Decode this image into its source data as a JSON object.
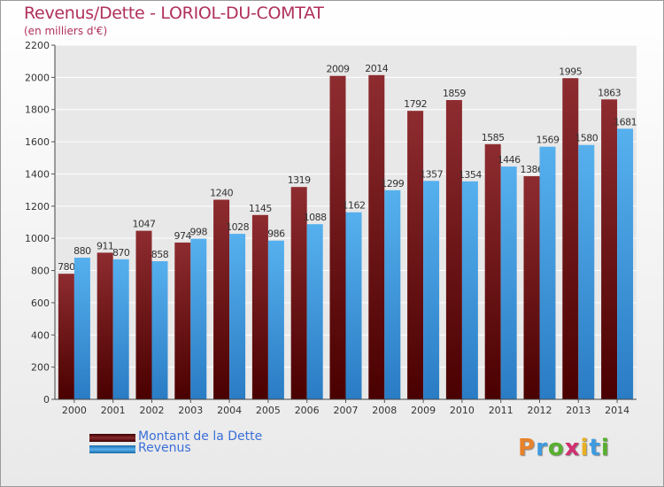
{
  "chart_data": {
    "type": "bar",
    "title": "Revenus/Dette - LORIOL-DU-COMTAT",
    "subtitle": "(en milliers d'€)",
    "categories": [
      "2000",
      "2001",
      "2002",
      "2003",
      "2004",
      "2005",
      "2006",
      "2007",
      "2008",
      "2009",
      "2010",
      "2011",
      "2012",
      "2013",
      "2014"
    ],
    "series": [
      {
        "name": "Montant de la Dette",
        "color": "#7a1418",
        "values": [
          780,
          911,
          1047,
          974,
          1240,
          1145,
          1319,
          2009,
          2014,
          1792,
          1859,
          1585,
          1386,
          1995,
          1863
        ]
      },
      {
        "name": "Revenus",
        "color": "#3f9be0",
        "values": [
          880,
          870,
          858,
          998,
          1028,
          986,
          1088,
          1162,
          1299,
          1357,
          1354,
          1446,
          1569,
          1580,
          1681
        ]
      }
    ],
    "ylim": [
      0,
      2200
    ],
    "yticks": [
      0,
      200,
      400,
      600,
      800,
      1000,
      1200,
      1400,
      1600,
      1800,
      2000,
      2200
    ],
    "xlabel": "",
    "ylabel": "",
    "grid": true,
    "legend": "bottom-left"
  },
  "legend": {
    "items": [
      {
        "label": "Montant de la Dette",
        "color": "#7a1418"
      },
      {
        "label": "Revenus",
        "color": "#3f9be0"
      }
    ]
  },
  "logo": {
    "text": "Proxiti",
    "letters": [
      {
        "ch": "P",
        "color": "#e8822a"
      },
      {
        "ch": "r",
        "color": "#3f9be0"
      },
      {
        "ch": "o",
        "color": "#58b030"
      },
      {
        "ch": "x",
        "color": "#d03070"
      },
      {
        "ch": "i",
        "color": "#e8b020"
      },
      {
        "ch": "t",
        "color": "#3f9be0"
      },
      {
        "ch": "i",
        "color": "#58b030"
      }
    ]
  }
}
